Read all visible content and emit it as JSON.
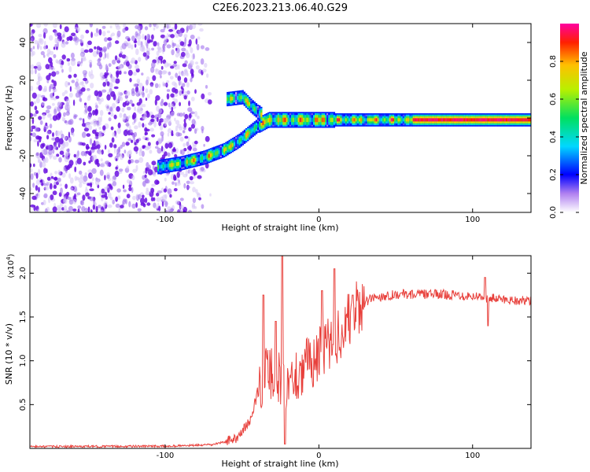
{
  "title": "C2E6.2023.213.06.40.G29",
  "chart_data": [
    {
      "type": "heatmap",
      "title": "",
      "xlabel": "Height of straight line (km)",
      "ylabel": "Frequency (Hz)",
      "xlim": [
        -188,
        138
      ],
      "ylim": [
        -50,
        50
      ],
      "xticks": [
        -100,
        0,
        100
      ],
      "yticks": [
        -40,
        -20,
        0,
        20,
        40
      ],
      "colorbar": {
        "label": "Normalized spectral amplitude",
        "ticks": [
          "0.0",
          "0.2",
          "0.4",
          "0.6",
          "0.8"
        ],
        "tick_values": [
          0.0,
          0.2,
          0.4,
          0.6,
          0.8
        ],
        "range": [
          0,
          1
        ]
      },
      "noise_region_x": [
        -188,
        -80
      ],
      "signal_track": [
        {
          "x": -105,
          "f": -26
        },
        {
          "x": -90,
          "f": -24
        },
        {
          "x": -75,
          "f": -21
        },
        {
          "x": -62,
          "f": -17
        },
        {
          "x": -52,
          "f": -12
        },
        {
          "x": -40,
          "f": -4
        },
        {
          "x": -33,
          "f": -1
        },
        {
          "x": 0,
          "f": -1
        },
        {
          "x": 60,
          "f": -1
        },
        {
          "x": 138,
          "f": -1
        }
      ],
      "upper_branch": [
        {
          "x": -60,
          "f": 10
        },
        {
          "x": -50,
          "f": 11
        },
        {
          "x": -44,
          "f": 6
        },
        {
          "x": -37,
          "f": 1
        }
      ]
    },
    {
      "type": "line",
      "title": "",
      "xlabel": "Height of straight line (km)",
      "ylabel": "SNR (10 * v/v)",
      "y_multiplier": "(x10",
      "y_multiplier_exp": "4",
      "y_multiplier_close": ")",
      "xlim": [
        -188,
        138
      ],
      "ylim": [
        0,
        2.2
      ],
      "xticks": [
        -100,
        0,
        100
      ],
      "yticks": [
        0.5,
        1.0,
        1.5,
        2.0
      ],
      "ytick_labels": [
        "0.5",
        "1.0",
        "1.5",
        "2.0"
      ],
      "color": "#e8413c",
      "series_envelope": [
        {
          "x": -188,
          "y": 0.02
        },
        {
          "x": -100,
          "y": 0.025
        },
        {
          "x": -70,
          "y": 0.04
        },
        {
          "x": -55,
          "y": 0.1
        },
        {
          "x": -45,
          "y": 0.3
        },
        {
          "x": -38,
          "y": 0.75
        },
        {
          "x": -34,
          "y": 0.9
        },
        {
          "x": -27,
          "y": 0.8
        },
        {
          "x": -20,
          "y": 0.75
        },
        {
          "x": -15,
          "y": 0.85
        },
        {
          "x": -5,
          "y": 1.0
        },
        {
          "x": 5,
          "y": 1.15
        },
        {
          "x": 15,
          "y": 1.35
        },
        {
          "x": 25,
          "y": 1.6
        },
        {
          "x": 35,
          "y": 1.72
        },
        {
          "x": 50,
          "y": 1.76
        },
        {
          "x": 80,
          "y": 1.76
        },
        {
          "x": 100,
          "y": 1.74
        },
        {
          "x": 120,
          "y": 1.7
        },
        {
          "x": 138,
          "y": 1.68
        }
      ],
      "spikes": [
        {
          "x": -36,
          "y": 1.75
        },
        {
          "x": -28,
          "y": 1.45
        },
        {
          "x": -24,
          "y": 2.2
        },
        {
          "x": -22,
          "y": 0.05
        },
        {
          "x": 2,
          "y": 1.8
        },
        {
          "x": 10,
          "y": 2.05
        },
        {
          "x": 22,
          "y": 1.75
        },
        {
          "x": 108,
          "y": 1.95
        },
        {
          "x": 110,
          "y": 1.4
        }
      ]
    }
  ]
}
